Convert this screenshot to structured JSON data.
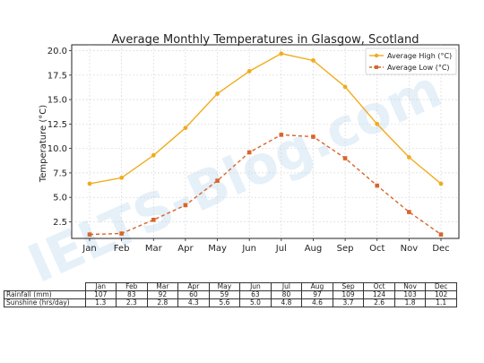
{
  "chart_data": {
    "type": "line",
    "title": "Average Monthly Temperatures in Glasgow, Scotland",
    "xlabel": "",
    "ylabel": "Temperature (°C)",
    "categories": [
      "Jan",
      "Feb",
      "Mar",
      "Apr",
      "May",
      "Jun",
      "Jul",
      "Aug",
      "Sep",
      "Oct",
      "Nov",
      "Dec"
    ],
    "ylim": [
      0.8,
      20.6
    ],
    "yticks": [
      "2.5",
      "5.0",
      "7.5",
      "10.0",
      "12.5",
      "15.0",
      "17.5",
      "20.0"
    ],
    "grid": true,
    "legend_position": "top-right",
    "series": [
      {
        "name": "Average High (°C)",
        "color": "#f0ac1e",
        "style": "solid",
        "marker": "circle",
        "values": [
          6.4,
          7.0,
          9.3,
          12.1,
          15.6,
          17.9,
          19.7,
          19.0,
          16.3,
          12.5,
          9.1,
          6.4
        ]
      },
      {
        "name": "Average Low (°C)",
        "color": "#d8652b",
        "style": "dashed",
        "marker": "square",
        "values": [
          1.2,
          1.3,
          2.7,
          4.2,
          6.7,
          9.6,
          11.4,
          11.2,
          9.0,
          6.2,
          3.5,
          1.2
        ]
      }
    ]
  },
  "table": {
    "months": [
      "Jan",
      "Feb",
      "Mar",
      "Apr",
      "May",
      "Jun",
      "Jul",
      "Aug",
      "Sep",
      "Oct",
      "Nov",
      "Dec"
    ],
    "rows": [
      {
        "label": "Rainfall (mm)",
        "values": [
          "107",
          "83",
          "92",
          "60",
          "59",
          "63",
          "80",
          "97",
          "109",
          "124",
          "103",
          "102"
        ]
      },
      {
        "label": "Sunshine (hrs/day)",
        "values": [
          "1.3",
          "2.3",
          "2.8",
          "4.3",
          "5.6",
          "5.0",
          "4.8",
          "4.6",
          "3.7",
          "2.6",
          "1.8",
          "1.1"
        ]
      }
    ]
  },
  "watermark": {
    "text": "IELTS-Blog.com"
  }
}
